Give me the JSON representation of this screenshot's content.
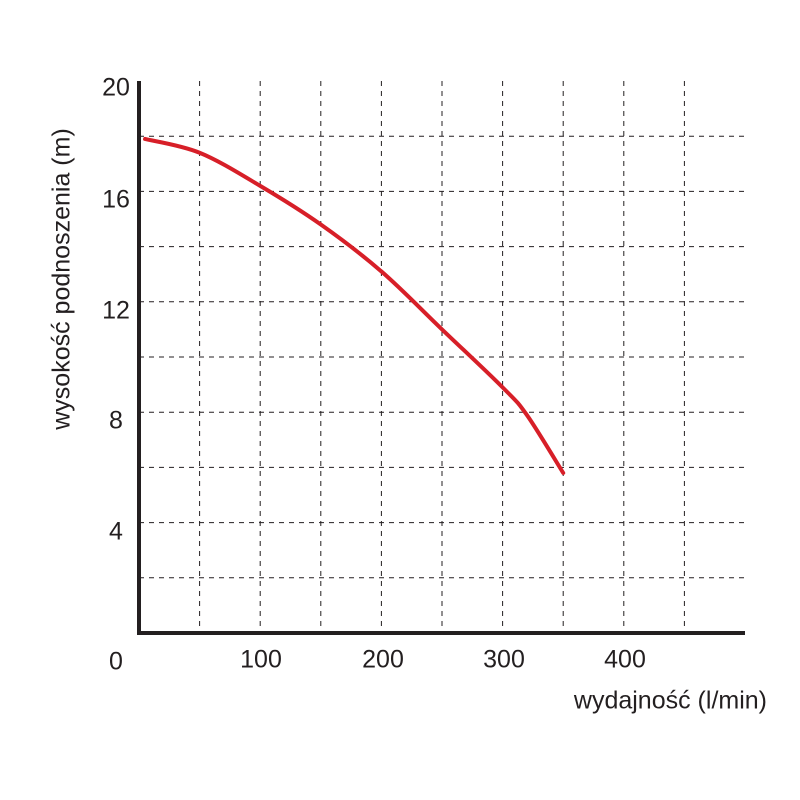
{
  "chart_data": {
    "type": "line",
    "xlabel": "wydajność (l/min)",
    "ylabel": "wysokość podnoszenia (m)",
    "xlim": [
      0,
      500
    ],
    "ylim": [
      0,
      20
    ],
    "origin_label": "0",
    "x_ticks": [
      "100",
      "200",
      "300",
      "400"
    ],
    "y_ticks": [
      "4",
      "8",
      "12",
      "16",
      "20"
    ],
    "grid": "dashed, every 50 l/min and every 2 m",
    "series": [
      {
        "color": "#d71f28",
        "points": [
          [
            5,
            17.9
          ],
          [
            50,
            17.4
          ],
          [
            100,
            16.2
          ],
          [
            150,
            14.8
          ],
          [
            200,
            13.1
          ],
          [
            250,
            11.0
          ],
          [
            300,
            8.9
          ],
          [
            320,
            7.9
          ],
          [
            350,
            5.8
          ]
        ]
      }
    ]
  }
}
